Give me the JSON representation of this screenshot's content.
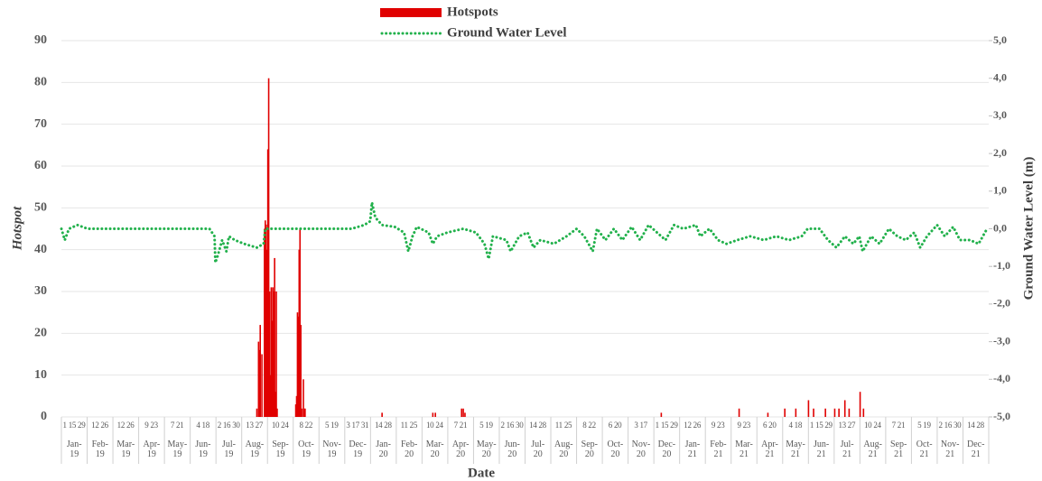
{
  "chart_data": {
    "type": "bar_line",
    "xlabel": "Date",
    "ylabel": "Hotspot",
    "y2label": "Ground Water Level (m)",
    "xlim": [
      "2019-01-01",
      "2021-12-31"
    ],
    "month_labels": [
      "Jan-19",
      "Feb-19",
      "Mar-19",
      "Apr-19",
      "May-19",
      "Jun-19",
      "Jul-19",
      "Aug-19",
      "Sep-19",
      "Oct-19",
      "Nov-19",
      "Dec-19",
      "Jan-20",
      "Feb-20",
      "Mar-20",
      "Apr-20",
      "May-20",
      "Jun-20",
      "Jul-20",
      "Aug-20",
      "Sep-20",
      "Oct-20",
      "Nov-20",
      "Dec-20",
      "Jan-21",
      "Feb-21",
      "Mar-21",
      "Apr-21",
      "May-21",
      "Jun-21",
      "Jul-21",
      "Aug-21",
      "Sep-21",
      "Oct-21",
      "Nov-21",
      "Dec-21"
    ],
    "day_labels": [
      "1 15 29",
      "12 26",
      "12 26",
      "9 23",
      "7 21",
      "4 18",
      "2 16 30",
      "13 27",
      "10 24",
      "8 22",
      "5 19",
      "3 17 31",
      "14 28",
      "11 25",
      "10 24",
      "7 21",
      "5 19",
      "2 16 30",
      "14 28",
      "11 25",
      "8 22",
      "6 20",
      "3 17",
      "1 15 29",
      "12 26",
      "9 23",
      "9 23",
      "6 20",
      "4 18",
      "1 15 29",
      "13 27",
      "10 24",
      "7 21",
      "5 19",
      "2 16 30",
      "14 28"
    ],
    "ylim": [
      0,
      90
    ],
    "yticks": [
      0,
      10,
      20,
      30,
      40,
      50,
      60,
      70,
      80,
      90
    ],
    "y2lim": [
      -5,
      5
    ],
    "y2ticks": [
      {
        "value": -5,
        "label": "-5,0"
      },
      {
        "value": -4,
        "label": "-4,0"
      },
      {
        "value": -3,
        "label": "-3,0"
      },
      {
        "value": -2,
        "label": "-2,0"
      },
      {
        "value": -1,
        "label": "-1,0"
      },
      {
        "value": 0,
        "label": "0,0"
      },
      {
        "value": 1,
        "label": "1,0"
      },
      {
        "value": 2,
        "label": "2,0"
      },
      {
        "value": 3,
        "label": "3,0"
      },
      {
        "value": 4,
        "label": "4,0"
      },
      {
        "value": 5,
        "label": "5,0"
      }
    ],
    "series": [
      {
        "name": "Hotspots",
        "color": "#e00000",
        "type": "bar",
        "x": [
          "2019-08-20",
          "2019-08-22",
          "2019-08-23",
          "2019-08-24",
          "2019-08-26",
          "2019-08-29",
          "2019-08-30",
          "2019-08-31",
          "2019-09-01",
          "2019-09-02",
          "2019-09-03",
          "2019-09-04",
          "2019-09-05",
          "2019-09-06",
          "2019-09-07",
          "2019-09-08",
          "2019-09-09",
          "2019-09-10",
          "2019-09-11",
          "2019-09-12",
          "2019-09-13",
          "2019-10-05",
          "2019-10-06",
          "2019-10-07",
          "2019-10-08",
          "2019-10-09",
          "2019-10-10",
          "2019-10-11",
          "2019-10-12",
          "2019-10-14",
          "2019-10-15",
          "2019-10-16",
          "2020-01-15",
          "2020-03-15",
          "2020-03-18",
          "2020-04-18",
          "2020-04-20",
          "2020-04-22",
          "2020-12-10",
          "2021-03-12",
          "2021-04-15",
          "2021-05-05",
          "2021-05-18",
          "2021-06-02",
          "2021-06-08",
          "2021-06-22",
          "2021-07-03",
          "2021-07-08",
          "2021-07-15",
          "2021-07-20",
          "2021-08-02",
          "2021-08-06"
        ],
        "values": [
          2,
          18,
          16,
          22,
          15,
          45,
          47,
          46,
          40,
          64,
          81,
          30,
          10,
          31,
          23,
          31,
          30,
          38,
          6,
          30,
          2,
          3,
          5,
          25,
          24,
          40,
          45,
          22,
          2,
          9,
          2,
          2,
          1,
          1,
          1,
          2,
          2,
          1,
          1,
          2,
          1,
          2,
          2,
          4,
          2,
          2,
          2,
          2,
          4,
          2,
          6,
          2
        ]
      },
      {
        "name": "Ground Water Level",
        "color": "#22b14c",
        "type": "line",
        "axis": "y2",
        "x": [
          "2019-01-01",
          "2019-01-05",
          "2019-01-10",
          "2019-01-20",
          "2019-02-01",
          "2019-03-01",
          "2019-04-01",
          "2019-05-01",
          "2019-06-01",
          "2019-06-25",
          "2019-07-01",
          "2019-07-02",
          "2019-07-05",
          "2019-07-10",
          "2019-07-15",
          "2019-07-18",
          "2019-07-25",
          "2019-08-05",
          "2019-08-20",
          "2019-08-28",
          "2019-08-30",
          "2019-09-15",
          "2019-10-15",
          "2019-11-15",
          "2019-12-10",
          "2019-12-25",
          "2020-01-01",
          "2020-01-03",
          "2020-01-07",
          "2020-01-15",
          "2020-01-30",
          "2020-02-10",
          "2020-02-15",
          "2020-02-20",
          "2020-02-25",
          "2020-03-10",
          "2020-03-15",
          "2020-03-20",
          "2020-04-01",
          "2020-04-20",
          "2020-05-05",
          "2020-05-15",
          "2020-05-20",
          "2020-05-25",
          "2020-06-10",
          "2020-06-15",
          "2020-06-25",
          "2020-07-05",
          "2020-07-12",
          "2020-07-20",
          "2020-08-05",
          "2020-08-20",
          "2020-09-01",
          "2020-09-10",
          "2020-09-20",
          "2020-09-25",
          "2020-10-05",
          "2020-10-15",
          "2020-10-25",
          "2020-11-05",
          "2020-11-15",
          "2020-11-25",
          "2020-12-05",
          "2020-12-15",
          "2020-12-25",
          "2021-01-05",
          "2021-01-20",
          "2021-01-25",
          "2021-02-05",
          "2021-02-15",
          "2021-02-25",
          "2021-03-10",
          "2021-03-25",
          "2021-04-10",
          "2021-04-25",
          "2021-05-10",
          "2021-05-25",
          "2021-06-01",
          "2021-06-15",
          "2021-06-25",
          "2021-07-05",
          "2021-07-15",
          "2021-07-25",
          "2021-08-01",
          "2021-08-05",
          "2021-08-15",
          "2021-08-25",
          "2021-09-05",
          "2021-09-15",
          "2021-09-25",
          "2021-10-05",
          "2021-10-12",
          "2021-10-20",
          "2021-11-01",
          "2021-11-10",
          "2021-11-20",
          "2021-11-28",
          "2021-12-10",
          "2021-12-20",
          "2021-12-30"
        ],
        "values": [
          0,
          -0.3,
          0,
          0.1,
          0,
          0,
          0,
          0,
          0,
          0,
          -0.2,
          -0.9,
          -0.7,
          -0.3,
          -0.6,
          -0.2,
          -0.3,
          -0.4,
          -0.5,
          -0.4,
          0,
          0,
          0,
          0,
          0,
          0.1,
          0.2,
          0.7,
          0.3,
          0.1,
          0.05,
          -0.1,
          -0.6,
          -0.2,
          0.05,
          -0.1,
          -0.4,
          -0.2,
          -0.1,
          0,
          -0.1,
          -0.4,
          -0.8,
          -0.2,
          -0.3,
          -0.6,
          -0.2,
          -0.1,
          -0.5,
          -0.3,
          -0.4,
          -0.2,
          0,
          -0.2,
          -0.6,
          0,
          -0.3,
          0,
          -0.3,
          0.05,
          -0.3,
          0.1,
          -0.1,
          -0.3,
          0.1,
          0,
          0.1,
          -0.2,
          0,
          -0.3,
          -0.4,
          -0.3,
          -0.2,
          -0.3,
          -0.2,
          -0.3,
          -0.2,
          0,
          0,
          -0.3,
          -0.5,
          -0.2,
          -0.4,
          -0.2,
          -0.6,
          -0.2,
          -0.4,
          0,
          -0.2,
          -0.3,
          -0.1,
          -0.5,
          -0.2,
          0.1,
          -0.2,
          0.05,
          -0.3,
          -0.3,
          -0.4,
          0
        ]
      }
    ]
  }
}
